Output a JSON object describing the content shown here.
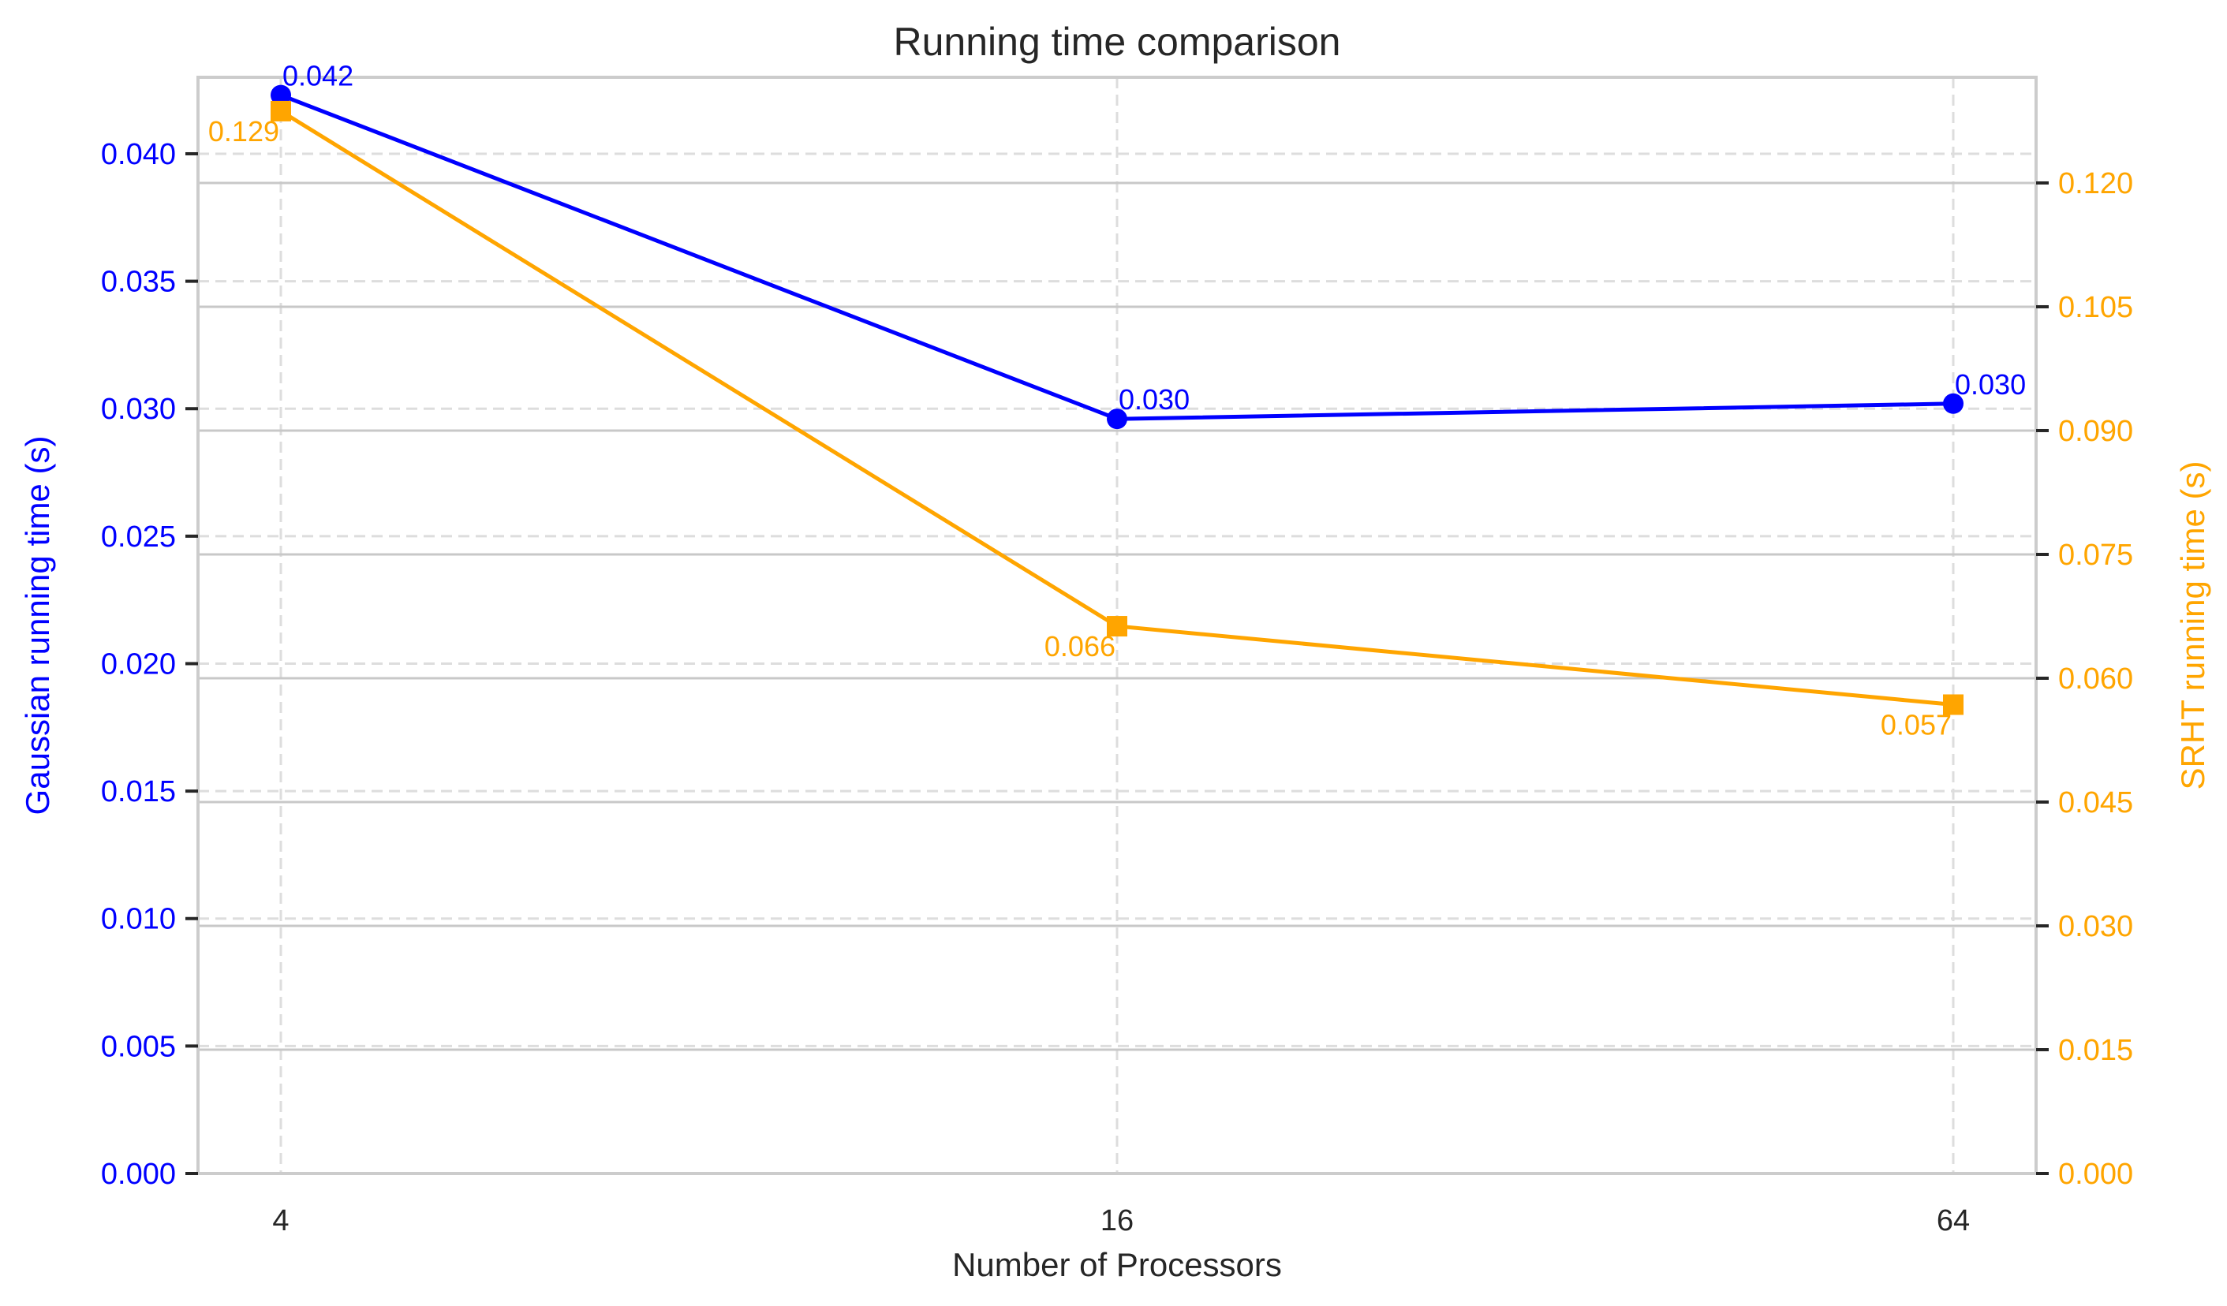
{
  "chart_data": {
    "type": "line",
    "title": "Running time comparison",
    "xlabel": "Number of Processors",
    "x": [
      4,
      16,
      64
    ],
    "x_tick_labels": [
      "4",
      "16",
      "64"
    ],
    "x_scale": "log2",
    "grid": true,
    "series": [
      {
        "axis": "left",
        "values": [
          0.0423,
          0.0296,
          0.0302
        ],
        "labels": [
          "0.042",
          "0.030",
          "0.030"
        ],
        "color": "#0000ff",
        "marker": "circle"
      },
      {
        "axis": "right",
        "values": [
          0.1287,
          0.0663,
          0.0568
        ],
        "labels": [
          "0.129",
          "0.066",
          "0.057"
        ],
        "color": "#ffa500",
        "marker": "square"
      }
    ],
    "y_left": {
      "label": "Gaussian running time (s)",
      "color": "#0000ff",
      "ylim": [
        0,
        0.043
      ],
      "ticks": [
        0,
        0.005,
        0.01,
        0.015,
        0.02,
        0.025,
        0.03,
        0.035,
        0.04
      ],
      "tick_labels": [
        "0.000",
        "0.005",
        "0.010",
        "0.015",
        "0.020",
        "0.025",
        "0.030",
        "0.035",
        "0.040"
      ]
    },
    "y_right": {
      "label": "SRHT running time (s)",
      "color": "#ffa500",
      "ylim": [
        0,
        0.1328
      ],
      "ticks": [
        0,
        0.015,
        0.03,
        0.045,
        0.06,
        0.075,
        0.09,
        0.105,
        0.12
      ],
      "tick_labels": [
        "0.000",
        "0.015",
        "0.030",
        "0.045",
        "0.060",
        "0.075",
        "0.090",
        "0.105",
        "0.120"
      ]
    }
  }
}
